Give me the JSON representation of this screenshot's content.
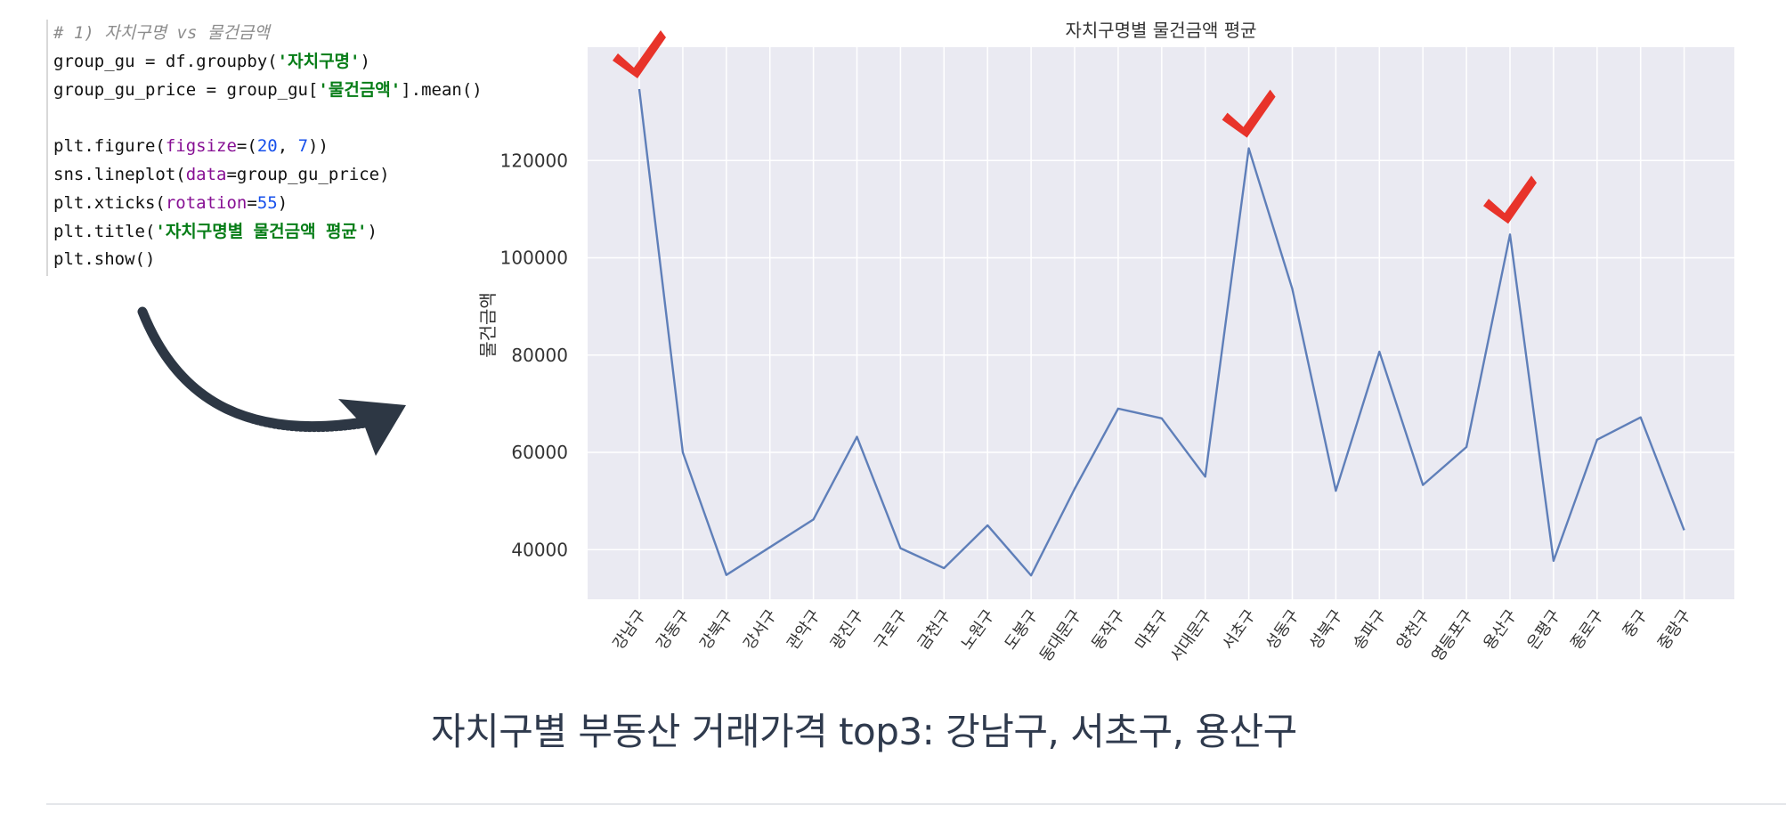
{
  "code": {
    "comment": "# 1) 자치구명 vs 물건금액",
    "l2_pre": "group_gu = df.groupby(",
    "l2_str": "'자치구명'",
    "l2_post": ")",
    "l3_pre": "group_gu_price = group_gu[",
    "l3_str": "'물건금액'",
    "l3_post": "].mean()",
    "l5_pre": "plt.figure(",
    "l5_kw": "figsize",
    "l5_eq": "=(",
    "l5_n1": "20",
    "l5_sep": ", ",
    "l5_n2": "7",
    "l5_post": "))",
    "l6_pre": "sns.lineplot(",
    "l6_kw": "data",
    "l6_post": "=group_gu_price)",
    "l7_pre": "plt.xticks(",
    "l7_kw": "rotation",
    "l7_eq": "=",
    "l7_n": "55",
    "l7_post": ")",
    "l8_pre": "plt.title(",
    "l8_str": "'자치구명별 물건금액 평균'",
    "l8_post": ")",
    "l9": "plt.show()"
  },
  "caption": "자치구별 부동산 거래가격 top3: 강남구, 서초구, 용산구",
  "colors": {
    "line": "#5f7fb9",
    "plot_bg": "#eaeaf2",
    "check": "#e8332a",
    "arrow": "#2d3744"
  },
  "icons": {
    "arrow": "hand-drawn-curved-arrow-icon",
    "check": "red-checkmark-icon"
  },
  "chart_data": {
    "type": "line",
    "title": "자치구명별 물건금액 평균",
    "xlabel": "",
    "ylabel": "물건금액",
    "categories": [
      "강남구",
      "강동구",
      "강북구",
      "강서구",
      "관악구",
      "광진구",
      "구로구",
      "금천구",
      "노원구",
      "도봉구",
      "동대문구",
      "동작구",
      "마포구",
      "서대문구",
      "서초구",
      "성동구",
      "성북구",
      "송파구",
      "양천구",
      "영등포구",
      "용산구",
      "은평구",
      "종로구",
      "중구",
      "중랑구"
    ],
    "values": [
      134700,
      60000,
      34800,
      40500,
      46200,
      63200,
      40300,
      36200,
      45000,
      34700,
      52500,
      69000,
      67000,
      55000,
      122500,
      93600,
      52100,
      80700,
      53300,
      61100,
      104800,
      37700,
      62600,
      67200,
      44000
    ],
    "yticks": [
      40000,
      60000,
      80000,
      100000,
      120000
    ],
    "ylim": [
      29800,
      143300
    ],
    "grid": true,
    "xtick_rotation": 55,
    "highlighted": [
      "강남구",
      "서초구",
      "용산구"
    ]
  }
}
